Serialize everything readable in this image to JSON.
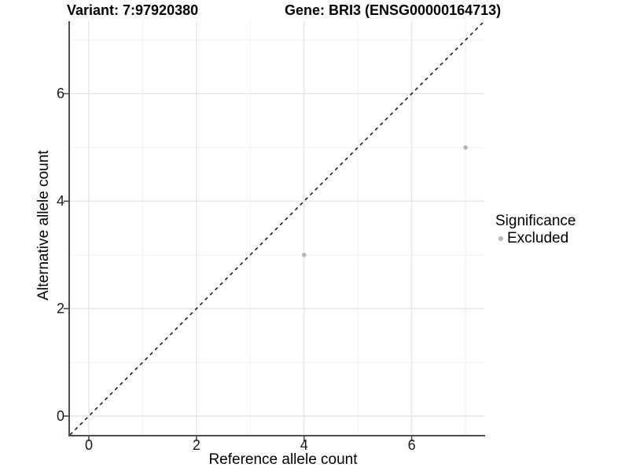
{
  "chart_data": {
    "type": "scatter",
    "title_left": "Variant: 7:97920380",
    "title_right": "Gene: BRI3 (ENSG00000164713)",
    "xlabel": "Reference allele count",
    "ylabel": "Alternative allele count",
    "xlim": [
      -0.35,
      7.35
    ],
    "ylim": [
      -0.35,
      7.35
    ],
    "x_ticks": [
      0,
      2,
      4,
      6
    ],
    "y_ticks": [
      0,
      2,
      4,
      6
    ],
    "grid": true,
    "grid_interval": 1,
    "aspect": "equal",
    "reference_line": {
      "type": "identity",
      "equation": "y = x",
      "style": "dashed",
      "color": "#111111"
    },
    "series": [
      {
        "name": "Excluded",
        "color": "#b5b5b5",
        "points": [
          {
            "x": 4,
            "y": 3
          },
          {
            "x": 7,
            "y": 5
          }
        ]
      }
    ],
    "legend": {
      "title": "Significance",
      "position": "right",
      "items": [
        {
          "label": "Excluded",
          "color": "#b5b5b5"
        }
      ]
    },
    "colors": {
      "axis_line": "#4f4f4f",
      "tick_mark": "#4f4f4f",
      "grid_major": "#e4e4e4",
      "grid_minor": "#f0f0f0",
      "background": "#ffffff"
    }
  }
}
